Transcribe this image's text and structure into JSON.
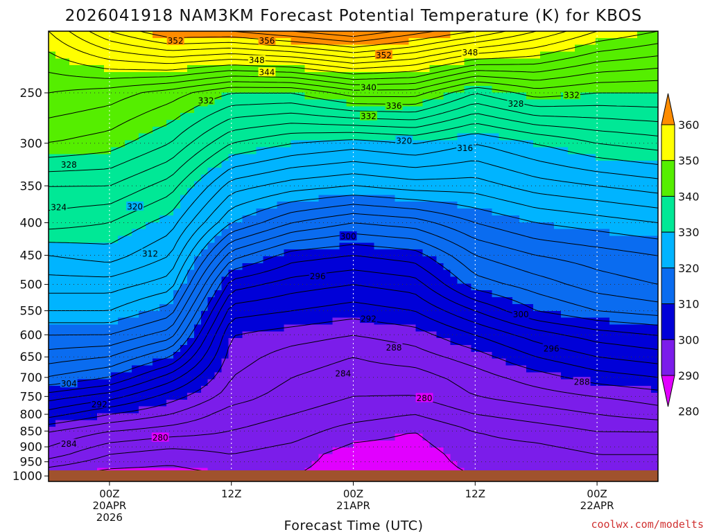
{
  "chart_data": {
    "type": "heatmap",
    "title": "2026041918 NAM3KM Forecast Potential Temperature (K) for KBOS",
    "xlabel": "Forecast Time (UTC)",
    "ylabel": "",
    "y_scale": "pressure",
    "ylim": [
      1020,
      200
    ],
    "y_ticks": [
      "250",
      "300",
      "350",
      "400",
      "450",
      "500",
      "550",
      "600",
      "650",
      "700",
      "750",
      "800",
      "850",
      "900",
      "950",
      "1000"
    ],
    "x_ticks": [
      {
        "line1": "00Z",
        "line2": "20APR",
        "line3": "2026"
      },
      {
        "line1": "12Z",
        "line2": "",
        "line3": ""
      },
      {
        "line1": "00Z",
        "line2": "21APR",
        "line3": ""
      },
      {
        "line1": "12Z",
        "line2": "",
        "line3": ""
      },
      {
        "line1": "00Z",
        "line2": "22APR",
        "line3": ""
      }
    ],
    "x_hours_since_init": [
      6,
      18,
      30,
      42,
      54
    ],
    "xlim_hours": [
      0,
      60
    ],
    "colorbar": {
      "ticks": [
        "360",
        "350",
        "340",
        "330",
        "320",
        "310",
        "300",
        "290",
        "280"
      ],
      "bins": [
        {
          "from": 350,
          "to": 360,
          "color": "#ff8c00"
        },
        {
          "from": 340,
          "to": 350,
          "color": "#ffff00"
        },
        {
          "from": 330,
          "to": 340,
          "color": "#55ee00"
        },
        {
          "from": 320,
          "to": 330,
          "color": "#00e896"
        },
        {
          "from": 310,
          "to": 320,
          "color": "#00b4ff"
        },
        {
          "from": 300,
          "to": 310,
          "color": "#0a6cf0"
        },
        {
          "from": 290,
          "to": 300,
          "color": "#0000d8"
        },
        {
          "from": 280,
          "to": 290,
          "color": "#7b1dea"
        },
        {
          "from": 270,
          "to": 280,
          "color": "#e100ff"
        }
      ]
    },
    "profiles": [
      {
        "hour": 0,
        "levels": [
          [
            1000,
            280
          ],
          [
            925,
            285
          ],
          [
            850,
            288
          ],
          [
            800,
            293
          ],
          [
            750,
            297
          ],
          [
            700,
            302
          ],
          [
            650,
            305
          ],
          [
            600,
            308
          ],
          [
            550,
            312
          ],
          [
            500,
            315
          ],
          [
            450,
            318
          ],
          [
            400,
            323
          ],
          [
            350,
            326
          ],
          [
            300,
            332
          ],
          [
            250,
            336
          ],
          [
            200,
            342
          ]
        ]
      },
      {
        "hour": 6,
        "levels": [
          [
            1000,
            279
          ],
          [
            925,
            282
          ],
          [
            850,
            286
          ],
          [
            800,
            290
          ],
          [
            750,
            295
          ],
          [
            700,
            300
          ],
          [
            650,
            304
          ],
          [
            600,
            308
          ],
          [
            550,
            312
          ],
          [
            500,
            315
          ],
          [
            450,
            319
          ],
          [
            400,
            322
          ],
          [
            350,
            326
          ],
          [
            300,
            331
          ],
          [
            250,
            335
          ],
          [
            200,
            348
          ]
        ]
      },
      {
        "hour": 12,
        "levels": [
          [
            1000,
            279
          ],
          [
            925,
            281
          ],
          [
            850,
            285
          ],
          [
            800,
            288
          ],
          [
            750,
            291
          ],
          [
            700,
            295
          ],
          [
            650,
            300
          ],
          [
            600,
            305
          ],
          [
            550,
            309
          ],
          [
            500,
            313
          ],
          [
            450,
            316
          ],
          [
            400,
            319
          ],
          [
            350,
            323
          ],
          [
            300,
            328
          ],
          [
            250,
            333
          ],
          [
            200,
            352
          ]
        ]
      },
      {
        "hour": 18,
        "levels": [
          [
            1000,
            280
          ],
          [
            925,
            282
          ],
          [
            850,
            284
          ],
          [
            800,
            285
          ],
          [
            750,
            287
          ],
          [
            700,
            288
          ],
          [
            650,
            289
          ],
          [
            600,
            290
          ],
          [
            550,
            293
          ],
          [
            500,
            297
          ],
          [
            450,
            303
          ],
          [
            400,
            310
          ],
          [
            350,
            315
          ],
          [
            300,
            322
          ],
          [
            250,
            330
          ],
          [
            200,
            352
          ]
        ]
      },
      {
        "hour": 24,
        "levels": [
          [
            1000,
            280
          ],
          [
            925,
            281
          ],
          [
            850,
            283
          ],
          [
            800,
            284
          ],
          [
            750,
            285
          ],
          [
            700,
            286
          ],
          [
            650,
            287
          ],
          [
            600,
            289
          ],
          [
            550,
            292
          ],
          [
            500,
            295
          ],
          [
            450,
            299
          ],
          [
            400,
            306
          ],
          [
            350,
            313
          ],
          [
            300,
            320
          ],
          [
            250,
            330
          ],
          [
            200,
            354
          ]
        ]
      },
      {
        "hour": 30,
        "levels": [
          [
            1000,
            279
          ],
          [
            925,
            279
          ],
          [
            850,
            281
          ],
          [
            800,
            283
          ],
          [
            750,
            284
          ],
          [
            700,
            285
          ],
          [
            650,
            286
          ],
          [
            600,
            288
          ],
          [
            550,
            291
          ],
          [
            500,
            294
          ],
          [
            450,
            298
          ],
          [
            400,
            304
          ],
          [
            350,
            312
          ],
          [
            300,
            319
          ],
          [
            250,
            333
          ],
          [
            200,
            356
          ]
        ]
      },
      {
        "hour": 36,
        "levels": [
          [
            1000,
            279
          ],
          [
            925,
            279
          ],
          [
            850,
            280
          ],
          [
            800,
            282
          ],
          [
            750,
            284
          ],
          [
            700,
            285
          ],
          [
            650,
            287
          ],
          [
            600,
            289
          ],
          [
            550,
            292
          ],
          [
            500,
            295
          ],
          [
            450,
            299
          ],
          [
            400,
            305
          ],
          [
            350,
            313
          ],
          [
            300,
            320
          ],
          [
            250,
            333
          ],
          [
            200,
            353
          ]
        ]
      },
      {
        "hour": 42,
        "levels": [
          [
            1000,
            280
          ],
          [
            925,
            281
          ],
          [
            850,
            282
          ],
          [
            800,
            284
          ],
          [
            750,
            286
          ],
          [
            700,
            287
          ],
          [
            650,
            289
          ],
          [
            600,
            292
          ],
          [
            550,
            296
          ],
          [
            500,
            301
          ],
          [
            450,
            304
          ],
          [
            400,
            308
          ],
          [
            350,
            313
          ],
          [
            300,
            318
          ],
          [
            250,
            328
          ],
          [
            200,
            350
          ]
        ]
      },
      {
        "hour": 48,
        "levels": [
          [
            1000,
            280
          ],
          [
            925,
            281
          ],
          [
            850,
            283
          ],
          [
            800,
            285
          ],
          [
            750,
            287
          ],
          [
            700,
            289
          ],
          [
            650,
            292
          ],
          [
            600,
            295
          ],
          [
            550,
            300
          ],
          [
            500,
            303
          ],
          [
            450,
            306
          ],
          [
            400,
            310
          ],
          [
            350,
            315
          ],
          [
            300,
            320
          ],
          [
            250,
            331
          ],
          [
            200,
            346
          ]
        ]
      },
      {
        "hour": 54,
        "levels": [
          [
            1000,
            281
          ],
          [
            925,
            282
          ],
          [
            850,
            284
          ],
          [
            800,
            286
          ],
          [
            750,
            288
          ],
          [
            700,
            291
          ],
          [
            650,
            294
          ],
          [
            600,
            297
          ],
          [
            550,
            302
          ],
          [
            500,
            305
          ],
          [
            450,
            307
          ],
          [
            400,
            311
          ],
          [
            350,
            316
          ],
          [
            300,
            322
          ],
          [
            250,
            330
          ],
          [
            200,
            342
          ]
        ]
      },
      {
        "hour": 60,
        "levels": [
          [
            1000,
            281
          ],
          [
            925,
            282
          ],
          [
            850,
            284
          ],
          [
            800,
            287
          ],
          [
            750,
            289
          ],
          [
            700,
            292
          ],
          [
            650,
            295
          ],
          [
            600,
            298
          ],
          [
            550,
            303
          ],
          [
            500,
            306
          ],
          [
            450,
            308
          ],
          [
            400,
            312
          ],
          [
            350,
            317
          ],
          [
            300,
            323
          ],
          [
            250,
            330
          ],
          [
            200,
            340
          ]
        ]
      }
    ],
    "contour_interval": 2,
    "contour_labels": [
      {
        "text": "352",
        "hour": 12.5,
        "p": 207
      },
      {
        "text": "356",
        "hour": 21.5,
        "p": 207
      },
      {
        "text": "352",
        "hour": 33.0,
        "p": 218
      },
      {
        "text": "348",
        "hour": 41.5,
        "p": 216
      },
      {
        "text": "348",
        "hour": 20.5,
        "p": 222
      },
      {
        "text": "344",
        "hour": 21.5,
        "p": 232
      },
      {
        "text": "332",
        "hour": 15.5,
        "p": 257
      },
      {
        "text": "340",
        "hour": 31.5,
        "p": 245
      },
      {
        "text": "336",
        "hour": 34.0,
        "p": 262
      },
      {
        "text": "332",
        "hour": 31.5,
        "p": 272
      },
      {
        "text": "328",
        "hour": 46.0,
        "p": 260
      },
      {
        "text": "332",
        "hour": 51.5,
        "p": 252
      },
      {
        "text": "320",
        "hour": 35.0,
        "p": 297
      },
      {
        "text": "316",
        "hour": 41.0,
        "p": 305
      },
      {
        "text": "328",
        "hour": 2.0,
        "p": 324
      },
      {
        "text": "324",
        "hour": 1.0,
        "p": 378
      },
      {
        "text": "320",
        "hour": 8.5,
        "p": 377
      },
      {
        "text": "312",
        "hour": 10.0,
        "p": 447
      },
      {
        "text": "300",
        "hour": 29.5,
        "p": 420
      },
      {
        "text": "296",
        "hour": 26.5,
        "p": 485
      },
      {
        "text": "292",
        "hour": 31.5,
        "p": 566
      },
      {
        "text": "288",
        "hour": 34.0,
        "p": 628
      },
      {
        "text": "284",
        "hour": 29.0,
        "p": 690
      },
      {
        "text": "280",
        "hour": 37.0,
        "p": 754
      },
      {
        "text": "300",
        "hour": 46.5,
        "p": 557
      },
      {
        "text": "296",
        "hour": 49.5,
        "p": 630
      },
      {
        "text": "288",
        "hour": 52.5,
        "p": 711
      },
      {
        "text": "304",
        "hour": 2.0,
        "p": 715
      },
      {
        "text": "292",
        "hour": 5.0,
        "p": 771
      },
      {
        "text": "284",
        "hour": 2.0,
        "p": 890
      },
      {
        "text": "280",
        "hour": 11.0,
        "p": 870
      }
    ],
    "legend": "right"
  },
  "credit": "coolwx.com/modelts"
}
